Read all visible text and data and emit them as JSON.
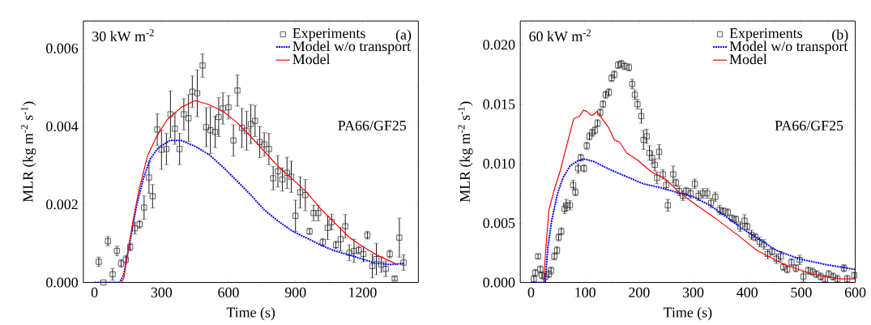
{
  "chart_data": [
    {
      "type": "scatter",
      "xlabel": "Time (s)",
      "ylabel": "MLR (kg m$^{-2}$ s$^{-1}$)",
      "xlim": [
        -50,
        1450
      ],
      "ylim": [
        0,
        0.0067
      ],
      "xticks": [
        0,
        300,
        600,
        900,
        1200
      ],
      "yticks": [
        {
          "value": 0,
          "label": "0.000"
        },
        0.002,
        0.004,
        0.006
      ],
      "legend": "top right",
      "grid": false,
      "annotations": [
        "30 kW m$^{-2}$",
        "(a)",
        "PA66/GF25"
      ],
      "series": [
        {
          "name": "Experiments",
          "marker": "square",
          "color": "#333333",
          "x": [
            19,
            40,
            60,
            81,
            100,
            119,
            140,
            160,
            181,
            202,
            222,
            244,
            260,
            281,
            300,
            322,
            340,
            360,
            381,
            400,
            421,
            438,
            460,
            484,
            500,
            519,
            540,
            556,
            575,
            600,
            622,
            640,
            660,
            681,
            700,
            719,
            740,
            760,
            781,
            800,
            821,
            841,
            862,
            881,
            900,
            921,
            944,
            963,
            981,
            1002,
            1022,
            1044,
            1062,
            1081,
            1102,
            1123,
            1141,
            1162,
            1183,
            1204,
            1222,
            1244,
            1262,
            1284,
            1304,
            1322,
            1344,
            1365,
            1384
          ],
          "values": [
            0.00053,
            0,
            0.00106,
            0.00021,
            0.00081,
            0.00049,
            0.00059,
            0.00091,
            0.00139,
            0.00149,
            0.00192,
            0.00269,
            0.00221,
            0.00392,
            0.0034,
            0.00342,
            0.00431,
            0.00394,
            0.00342,
            0.00431,
            0.00421,
            0.00489,
            0.00485,
            0.00556,
            0.00398,
            0.0039,
            0.00386,
            0.00424,
            0.00446,
            0.00449,
            0.00364,
            0.00492,
            0.00396,
            0.00389,
            0.00406,
            0.00414,
            0.0036,
            0.00354,
            0.00342,
            0.00267,
            0.00285,
            0.00264,
            0.00281,
            0.00271,
            0.00171,
            0.00231,
            0.00224,
            0.00131,
            0.00178,
            0.00178,
            0.00103,
            0.0014,
            0.00155,
            0.00096,
            0.00111,
            0.00144,
            0.00076,
            0.00081,
            0.00083,
            0.00073,
            0.00121,
            0.00042,
            0.0006,
            0.00046,
            0.00035,
            0.00073,
            0.0001,
            0.00115,
            0.00051
          ],
          "errors": [
            0.00012,
            null,
            0.00012,
            0.00015,
            0.00012,
            0.0001,
            0.0001,
            0.0001,
            0.00015,
            0.0001,
            0.0003,
            0.0004,
            0.0003,
            0.0004,
            0.0005,
            0.0004,
            0.0006,
            0.0004,
            0.0004,
            0.0004,
            0.0006,
            0.0004,
            0.0006,
            0.0003,
            0.0005,
            0.0006,
            0.0004,
            0.0005,
            0.0004,
            0.0003,
            0.0004,
            0.0004,
            0.0005,
            0.0005,
            0.0005,
            0.0004,
            0.0004,
            0.0003,
            0.0004,
            0.0003,
            0.0004,
            0.0003,
            0.0004,
            0.0004,
            0.0004,
            0.0004,
            0.0004,
            8e-05,
            0.0002,
            0.0002,
            0.0001,
            0.0003,
            0.0002,
            0.0001,
            0.0003,
            0.0003,
            0.0002,
            0.0003,
            0.0001,
            0.0002,
            0.0001,
            0.0003,
            0.0004,
            0.0002,
            0.0002,
            0.0001,
            5e-05,
            0.0005,
            0.0002
          ]
        },
        {
          "name": "Model w/o transport",
          "type": "line",
          "line_style": "dotted",
          "color": "#0000ff",
          "x": [
            0,
            112,
            131,
            156,
            188,
            219,
            250,
            287,
            338,
            388,
            450,
            512,
            575,
            638,
            700,
            762,
            825,
            888,
            950,
            1012,
            1075,
            1138,
            1200,
            1262,
            1325,
            1388
          ],
          "values": [
            0,
            0,
            0.0002,
            0.00096,
            0.00196,
            0.00267,
            0.00317,
            0.00346,
            0.00364,
            0.00364,
            0.00349,
            0.00328,
            0.00296,
            0.0026,
            0.00224,
            0.00185,
            0.00156,
            0.00131,
            0.00114,
            0.00096,
            0.00081,
            0.00071,
            0.0006,
            0.00049,
            0.00046,
            0.00049
          ]
        },
        {
          "name": "Model",
          "type": "line",
          "line_style": "solid",
          "color": "#ff0000",
          "x": [
            119,
            131,
            150,
            175,
            200,
            237,
            275,
            325,
            388,
            450,
            512,
            575,
            638,
            700,
            762,
            825,
            888,
            950,
            1012,
            1075,
            1138,
            1200,
            1262,
            1356
          ],
          "values": [
            0,
            0.0001,
            0.00081,
            0.00167,
            0.00239,
            0.00324,
            0.00371,
            0.00417,
            0.00449,
            0.00466,
            0.00456,
            0.00439,
            0.0041,
            0.00374,
            0.00335,
            0.00296,
            0.00264,
            0.00231,
            0.00189,
            0.00153,
            0.00117,
            0.00092,
            0.00071,
            0.00046
          ]
        }
      ]
    },
    {
      "type": "scatter",
      "xlabel": "Time (s)",
      "ylabel": "MLR (kg m$^{-2}$ s$^{-1}$)",
      "xlim": [
        -20,
        600
      ],
      "ylim": [
        0,
        0.022
      ],
      "xticks": [
        0,
        100,
        200,
        300,
        400,
        500,
        600
      ],
      "yticks": [
        {
          "value": 0,
          "label": "0.000"
        },
        0.005,
        {
          "value": 0.01,
          "label": "0.010"
        },
        0.015,
        {
          "value": 0.02,
          "label": "0.020"
        }
      ],
      "legend": "top right",
      "grid": false,
      "annotations": [
        "60 kW m$^{-2}$",
        "(b)",
        "PA66/GF25"
      ],
      "series": [
        {
          "name": "Experiments",
          "marker": "square",
          "color": "#333333",
          "x": [
            5,
            8,
            13,
            17,
            20,
            26,
            33,
            37,
            43,
            48,
            51,
            56,
            62,
            65,
            72,
            78,
            82,
            87,
            92,
            98,
            103,
            108,
            113,
            118,
            123,
            128,
            133,
            138,
            144,
            149,
            154,
            161,
            167,
            173,
            181,
            187,
            192,
            197,
            204,
            208,
            214,
            219,
            224,
            229,
            233,
            237,
            244,
            250,
            253,
            263,
            268,
            274,
            281,
            287,
            295,
            303,
            310,
            318,
            326,
            333,
            341,
            349,
            356,
            364,
            372,
            379,
            387,
            395,
            400,
            408,
            415,
            423,
            431,
            438,
            446,
            454,
            462,
            467,
            474,
            482,
            490,
            497,
            504,
            513,
            521,
            528,
            536,
            544,
            551,
            559,
            567,
            579,
            585,
            598
          ],
          "values": [
            0.0003,
            0.0008,
            0.0022,
            0.0011,
            0.0006,
            0.0005,
            0.0007,
            0.001,
            0.0022,
            0.0027,
            0.0038,
            0.0043,
            0.0062,
            0.0065,
            0.0065,
            0.0082,
            0.0076,
            0.0096,
            0.0105,
            0.0096,
            0.0115,
            0.0123,
            0.0126,
            0.0128,
            0.0134,
            0.0143,
            0.015,
            0.0158,
            0.016,
            0.0172,
            0.0175,
            0.0183,
            0.0184,
            0.0182,
            0.0181,
            0.0167,
            0.0158,
            0.015,
            0.014,
            0.012,
            0.0123,
            0.0109,
            0.0105,
            0.0099,
            0.0088,
            0.011,
            0.0091,
            0.0082,
            0.0065,
            0.0091,
            0.0084,
            0.0077,
            0.0073,
            0.0077,
            0.0075,
            0.0083,
            0.0073,
            0.0075,
            0.0075,
            0.0067,
            0.0072,
            0.0061,
            0.006,
            0.0059,
            0.0054,
            0.0053,
            0.0047,
            0.0052,
            0.0047,
            0.004,
            0.0038,
            0.0034,
            0.0032,
            0.0024,
            0.0026,
            0.002,
            0.0022,
            0.0013,
            0.0011,
            0.0017,
            0.0012,
            0.0019,
            0.0005,
            0.001,
            0.0009,
            0.0007,
            0.0005,
            0.0003,
            0.0007,
            0.0005,
            0.0003,
            0.0012,
            0.0003,
            0.0006
          ],
          "errors": [
            0.0003,
            0.0003,
            0.0002,
            0.0003,
            0.0003,
            0.0003,
            0.0003,
            0.0003,
            0.0003,
            0.0003,
            0.0003,
            0.0003,
            0.0004,
            0.0005,
            0.0004,
            0.0004,
            0.0003,
            0.0004,
            0.0003,
            0.0003,
            0.0003,
            0.0003,
            0.0003,
            0.0003,
            0.0003,
            0.0003,
            0.0003,
            0.0003,
            0.0003,
            0.0003,
            0.0003,
            0.0003,
            0.0003,
            0.0003,
            0.0003,
            0.0004,
            0.0004,
            0.0004,
            0.0006,
            0.0008,
            0.0006,
            0.0006,
            0.0005,
            0.0005,
            0.0005,
            0.0006,
            0.0004,
            0.0004,
            0.0005,
            0.0007,
            0.0003,
            0.0004,
            0.0004,
            0.0003,
            0.0004,
            0.0004,
            0.0004,
            0.0004,
            0.0004,
            0.0004,
            0.0004,
            0.0004,
            0.0003,
            0.0003,
            0.0003,
            0.0003,
            0.0004,
            0.0005,
            0.0003,
            0.0004,
            0.0003,
            0.0004,
            0.0004,
            0.0004,
            0.0003,
            0.0004,
            0.0004,
            0.0003,
            0.0003,
            0.0003,
            0.0003,
            0.0004,
            0.0004,
            0.0003,
            0.0003,
            0.0003,
            0.0003,
            0.0003,
            0.0003,
            0.0003,
            0.0003,
            0.0003,
            0.0003,
            0.0003
          ]
        },
        {
          "name": "Model w/o transport",
          "type": "line",
          "line_style": "dotted",
          "color": "#0000ff",
          "x": [
            0,
            26,
            31,
            38,
            49,
            59,
            72,
            85,
            97,
            115,
            146,
            177,
            208,
            238,
            269,
            300,
            331,
            362,
            392,
            423,
            454,
            495,
            546,
            600
          ],
          "values": [
            0,
            0,
            0.0029,
            0.0052,
            0.0075,
            0.0088,
            0.0098,
            0.0102,
            0.0104,
            0.0102,
            0.0095,
            0.0089,
            0.0083,
            0.008,
            0.0076,
            0.0072,
            0.0065,
            0.0055,
            0.0045,
            0.0036,
            0.0027,
            0.002,
            0.0015,
            0.0011
          ]
        },
        {
          "name": "Model",
          "type": "line",
          "line_style": "solid",
          "color": "#ff0000",
          "x": [
            23,
            28,
            33,
            44,
            54,
            64,
            79,
            90,
            97,
            103,
            110,
            115,
            122,
            131,
            144,
            154,
            164,
            177,
            197,
            223,
            249,
            274,
            300,
            341,
            382,
            418,
            469,
            521,
            572,
            600
          ],
          "values": [
            0,
            0.0033,
            0.0061,
            0.008,
            0.0094,
            0.0112,
            0.0138,
            0.014,
            0.0145,
            0.0144,
            0.0141,
            0.0141,
            0.0144,
            0.0138,
            0.013,
            0.012,
            0.0118,
            0.0109,
            0.0103,
            0.0093,
            0.0087,
            0.0076,
            0.0067,
            0.0054,
            0.004,
            0.0027,
            0.0015,
            0.0007,
            0.0003,
            0.0003
          ]
        }
      ]
    }
  ]
}
